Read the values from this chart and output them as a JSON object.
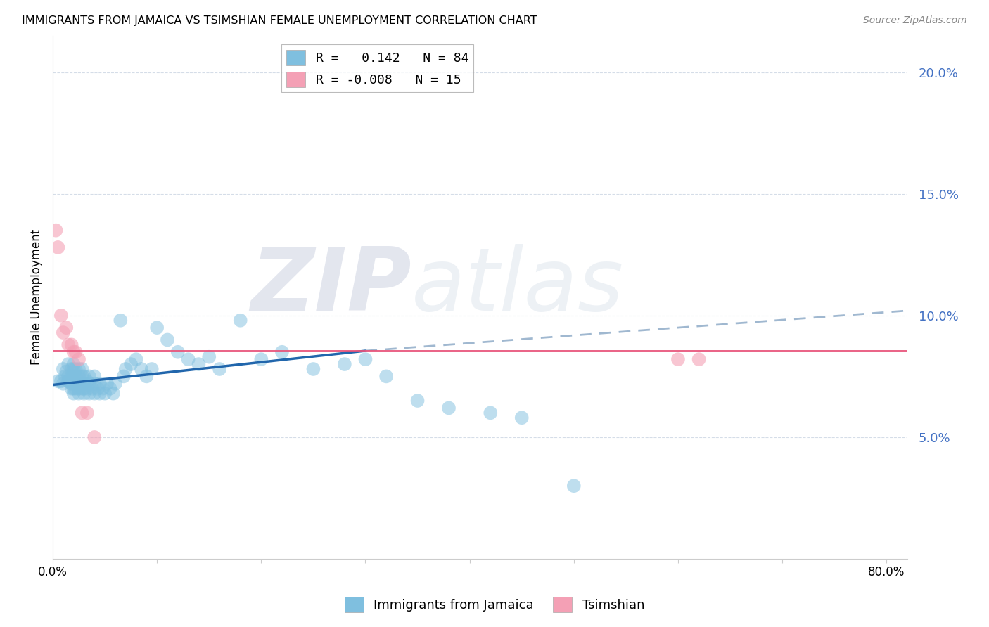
{
  "title": "IMMIGRANTS FROM JAMAICA VS TSIMSHIAN FEMALE UNEMPLOYMENT CORRELATION CHART",
  "source": "Source: ZipAtlas.com",
  "ylabel": "Female Unemployment",
  "y_ticks": [
    0.05,
    0.1,
    0.15,
    0.2
  ],
  "y_tick_labels": [
    "5.0%",
    "10.0%",
    "15.0%",
    "20.0%"
  ],
  "x_ticks": [
    0.0,
    0.1,
    0.2,
    0.3,
    0.4,
    0.5,
    0.6,
    0.7,
    0.8
  ],
  "xlim": [
    0.0,
    0.82
  ],
  "ylim": [
    0.0,
    0.215
  ],
  "legend_entry1": "R =   0.142   N = 84",
  "legend_entry2": "R = -0.008   N = 15",
  "legend_label1": "Immigrants from Jamaica",
  "legend_label2": "Tsimshian",
  "color_blue": "#7fbfdf",
  "color_pink": "#f4a0b5",
  "color_blue_line": "#2166ac",
  "color_pink_line": "#e8537a",
  "color_dashed_line": "#a0b8d0",
  "watermark_zip": "ZIP",
  "watermark_atlas": "atlas",
  "blue_scatter_x": [
    0.005,
    0.008,
    0.01,
    0.01,
    0.012,
    0.013,
    0.015,
    0.015,
    0.015,
    0.015,
    0.018,
    0.018,
    0.018,
    0.018,
    0.018,
    0.02,
    0.02,
    0.02,
    0.02,
    0.02,
    0.02,
    0.02,
    0.022,
    0.022,
    0.022,
    0.022,
    0.025,
    0.025,
    0.025,
    0.025,
    0.025,
    0.028,
    0.028,
    0.028,
    0.028,
    0.03,
    0.03,
    0.03,
    0.03,
    0.033,
    0.033,
    0.035,
    0.035,
    0.035,
    0.038,
    0.04,
    0.04,
    0.04,
    0.043,
    0.045,
    0.045,
    0.048,
    0.05,
    0.052,
    0.055,
    0.058,
    0.06,
    0.065,
    0.068,
    0.07,
    0.075,
    0.08,
    0.085,
    0.09,
    0.095,
    0.1,
    0.11,
    0.12,
    0.13,
    0.14,
    0.15,
    0.16,
    0.18,
    0.2,
    0.22,
    0.25,
    0.28,
    0.3,
    0.32,
    0.35,
    0.38,
    0.42,
    0.45,
    0.5
  ],
  "blue_scatter_y": [
    0.073,
    0.073,
    0.072,
    0.078,
    0.075,
    0.077,
    0.073,
    0.073,
    0.075,
    0.08,
    0.07,
    0.072,
    0.073,
    0.075,
    0.078,
    0.068,
    0.07,
    0.072,
    0.073,
    0.075,
    0.078,
    0.08,
    0.07,
    0.072,
    0.075,
    0.078,
    0.068,
    0.07,
    0.073,
    0.075,
    0.078,
    0.07,
    0.072,
    0.075,
    0.078,
    0.068,
    0.07,
    0.072,
    0.075,
    0.07,
    0.073,
    0.068,
    0.072,
    0.075,
    0.07,
    0.068,
    0.072,
    0.075,
    0.07,
    0.068,
    0.072,
    0.07,
    0.068,
    0.072,
    0.07,
    0.068,
    0.072,
    0.098,
    0.075,
    0.078,
    0.08,
    0.082,
    0.078,
    0.075,
    0.078,
    0.095,
    0.09,
    0.085,
    0.082,
    0.08,
    0.083,
    0.078,
    0.098,
    0.082,
    0.085,
    0.078,
    0.08,
    0.082,
    0.075,
    0.065,
    0.062,
    0.06,
    0.058,
    0.03
  ],
  "pink_scatter_x": [
    0.003,
    0.005,
    0.008,
    0.01,
    0.013,
    0.015,
    0.018,
    0.02,
    0.022,
    0.025,
    0.028,
    0.033,
    0.04,
    0.6,
    0.62
  ],
  "pink_scatter_y": [
    0.135,
    0.128,
    0.1,
    0.093,
    0.095,
    0.088,
    0.088,
    0.085,
    0.085,
    0.082,
    0.06,
    0.06,
    0.05,
    0.082,
    0.082
  ],
  "blue_line_x0": 0.0,
  "blue_line_x1": 0.3,
  "blue_line_y0": 0.0715,
  "blue_line_y1": 0.0855,
  "dashed_line_x0": 0.3,
  "dashed_line_x1": 0.82,
  "dashed_line_y0": 0.0855,
  "dashed_line_y1": 0.102,
  "pink_line_x0": 0.0,
  "pink_line_x1": 0.82,
  "pink_line_y0": 0.0855,
  "pink_line_y1": 0.0855,
  "grid_color": "#d5dde8"
}
